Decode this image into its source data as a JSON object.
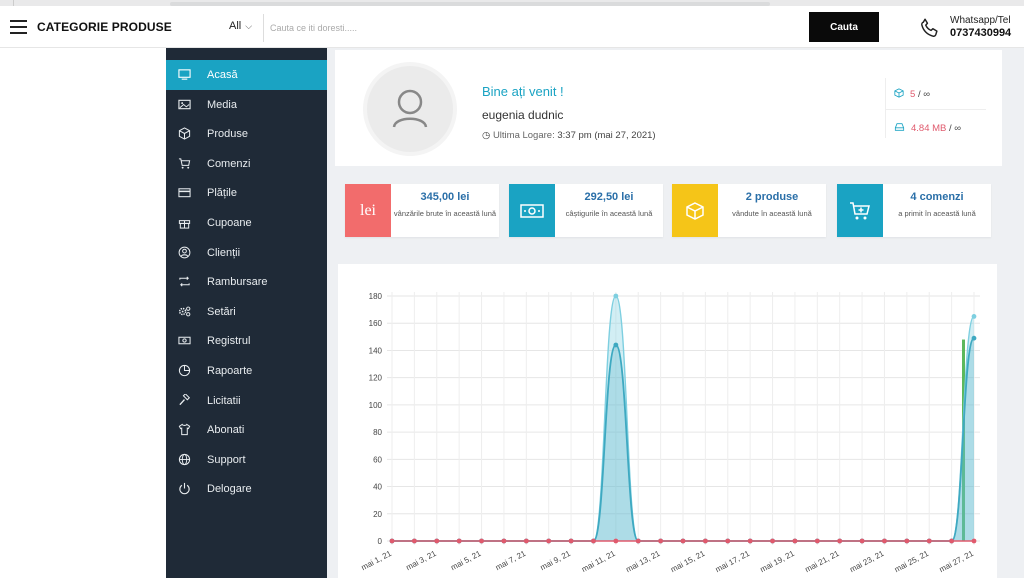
{
  "header": {
    "title": "CATEGORIE PRODUSE",
    "all_label": "All",
    "search_placeholder": "Cauta ce iti doresti.....",
    "search_button": "Cauta",
    "contact_label": "Whatsapp/Tel",
    "contact_number": "0737430994"
  },
  "sidebar": {
    "items": [
      {
        "label": "Acasă",
        "icon": "monitor-icon",
        "active": true
      },
      {
        "label": "Media",
        "icon": "image-icon"
      },
      {
        "label": "Produse",
        "icon": "box-icon"
      },
      {
        "label": "Comenzi",
        "icon": "cart-icon"
      },
      {
        "label": "Plățile",
        "icon": "credit-card-icon"
      },
      {
        "label": "Cupoane",
        "icon": "gift-icon"
      },
      {
        "label": "Clienții",
        "icon": "user-circle-icon"
      },
      {
        "label": "Rambursare",
        "icon": "repeat-icon"
      },
      {
        "label": "Setări",
        "icon": "gears-icon"
      },
      {
        "label": "Registrul",
        "icon": "money-icon"
      },
      {
        "label": "Rapoarte",
        "icon": "pie-chart-icon"
      },
      {
        "label": "Licitatii",
        "icon": "gavel-icon"
      },
      {
        "label": "Abonati",
        "icon": "shirt-icon"
      },
      {
        "label": "Support",
        "icon": "globe-icon"
      },
      {
        "label": "Delogare",
        "icon": "power-icon"
      }
    ]
  },
  "welcome": {
    "title": "Bine ați venit !",
    "user": "eugenia dudnic",
    "last_login_label": "Ultima Logare:",
    "last_login_value": "3:37 pm (mai 27, 2021)"
  },
  "quota": {
    "products_value": "5",
    "products_limit": "/ ∞",
    "storage_value": "4.84 MB",
    "storage_limit": "/ ∞"
  },
  "stats": [
    {
      "icon_text": "lei",
      "value": "345,00 lei",
      "label": "vânzările brute în această lună",
      "color": "#f26c6c"
    },
    {
      "icon_text": "",
      "value": "292,50 lei",
      "label": "câștigurile în această lună",
      "color": "#1aa3c3"
    },
    {
      "icon_text": "",
      "value": "2 produse",
      "label": "vândute în această lună",
      "color": "#f5c518"
    },
    {
      "icon_text": "",
      "value": "4 comenzi",
      "label": "a primit în această lună",
      "color": "#1aa3c3"
    }
  ],
  "chart_data": {
    "type": "line",
    "categories": [
      "mai 1, 21",
      "mai 2, 21",
      "mai 3, 21",
      "mai 4, 21",
      "mai 5, 21",
      "mai 6, 21",
      "mai 7, 21",
      "mai 8, 21",
      "mai 9, 21",
      "mai 10, 21",
      "mai 11, 21",
      "mai 12, 21",
      "mai 13, 21",
      "mai 14, 21",
      "mai 15, 21",
      "mai 16, 21",
      "mai 17, 21",
      "mai 18, 21",
      "mai 19, 21",
      "mai 20, 21",
      "mai 21, 21",
      "mai 22, 21",
      "mai 23, 21",
      "mai 24, 21",
      "mai 25, 21",
      "mai 26, 21",
      "mai 27, 21"
    ],
    "tick_labels": [
      "mai 1, 21",
      "mai 3, 21",
      "mai 5, 21",
      "mai 7, 21",
      "mai 9, 21",
      "mai 11, 21",
      "mai 13, 21",
      "mai 15, 21",
      "mai 17, 21",
      "mai 19, 21",
      "mai 21, 21",
      "mai 23, 21",
      "mai 25, 21",
      "mai 27, 21"
    ],
    "series": [
      {
        "values": [
          0,
          0,
          0,
          0,
          0,
          0,
          0,
          0,
          0,
          0,
          180,
          0,
          0,
          0,
          0,
          0,
          0,
          0,
          0,
          0,
          0,
          0,
          0,
          0,
          0,
          0,
          165
        ],
        "color": "#7ecfe0"
      },
      {
        "values": [
          0,
          0,
          0,
          0,
          0,
          0,
          0,
          0,
          0,
          0,
          144,
          0,
          0,
          0,
          0,
          0,
          0,
          0,
          0,
          0,
          0,
          0,
          0,
          0,
          0,
          0,
          149
        ],
        "color": "#3ea9c1"
      },
      {
        "values": [
          0,
          0,
          0,
          0,
          0,
          0,
          0,
          0,
          0,
          0,
          0,
          0,
          0,
          0,
          0,
          0,
          0,
          0,
          0,
          0,
          0,
          0,
          0,
          0,
          0,
          0,
          0
        ],
        "color": "#e05a6d"
      }
    ],
    "bars": [
      {
        "category": "mai 27, 21",
        "value": 148,
        "color": "#5cb85c"
      }
    ],
    "yticks": [
      0,
      20,
      40,
      60,
      80,
      100,
      120,
      140,
      160,
      180
    ],
    "ylim": [
      0,
      180
    ],
    "grid": true,
    "legend": "none"
  }
}
